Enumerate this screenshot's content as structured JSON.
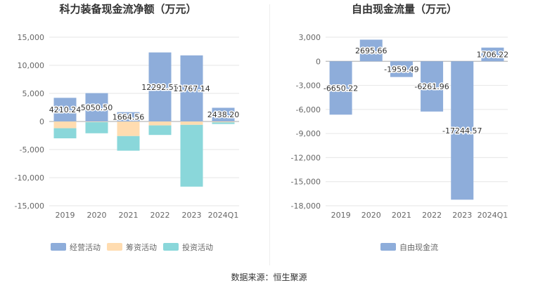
{
  "source": "数据来源：恒生聚源",
  "colors": {
    "grid": "#e6e6e6",
    "axis_text": "#666666",
    "label_text": "#333333",
    "title_text": "#333333"
  },
  "chart_data": [
    {
      "id": "left",
      "type": "bar",
      "stacked": true,
      "title": "科力装备现金流净额（万元）",
      "categories": [
        "2019",
        "2020",
        "2021",
        "2022",
        "2023",
        "2024Q1"
      ],
      "ylim": [
        -15000,
        15000
      ],
      "yticks": [
        15000,
        10000,
        5000,
        0,
        -5000,
        -10000,
        -15000
      ],
      "ytick_labels": [
        "15,000",
        "10,000",
        "5,000",
        "0",
        "-5,000",
        "-10,000",
        "-15,000"
      ],
      "grid": true,
      "legend_position": "bottom",
      "series": [
        {
          "name": "经营活动",
          "color": "#8eadda",
          "values": [
            4210.24,
            5050.5,
            1664.56,
            12292.55,
            11767.14,
            2438.2
          ]
        },
        {
          "name": "筹资活动",
          "color": "#ffdcb0",
          "values": [
            -1200,
            -100,
            -2600,
            -700,
            -600,
            -150
          ]
        },
        {
          "name": "投资活动",
          "color": "#8ad7da",
          "values": [
            -1800,
            -2000,
            -2600,
            -1700,
            -11000,
            -300
          ]
        }
      ],
      "data_labels": [
        "4210.24",
        "5050.50",
        "1664.56",
        "12292.55",
        "11767.14",
        "2438.20"
      ]
    },
    {
      "id": "right",
      "type": "bar",
      "stacked": false,
      "title": "自由现金流量（万元）",
      "categories": [
        "2019",
        "2020",
        "2021",
        "2022",
        "2023",
        "2024Q1"
      ],
      "ylim": [
        -18000,
        3000
      ],
      "yticks": [
        3000,
        0,
        -3000,
        -6000,
        -9000,
        -12000,
        -15000,
        -18000
      ],
      "ytick_labels": [
        "3,000",
        "0",
        "-3,000",
        "-6,000",
        "-9,000",
        "-12,000",
        "-15,000",
        "-18,000"
      ],
      "grid": true,
      "legend_position": "bottom",
      "series": [
        {
          "name": "自由现金流",
          "color": "#8eadda",
          "values": [
            -6650.22,
            2695.66,
            -1959.49,
            -6261.96,
            -17244.57,
            1706.22
          ]
        }
      ],
      "data_labels": [
        "-6650.22",
        "2695.66",
        "-1959.49",
        "-6261.96",
        "-17244.57",
        "1706.22"
      ]
    }
  ]
}
